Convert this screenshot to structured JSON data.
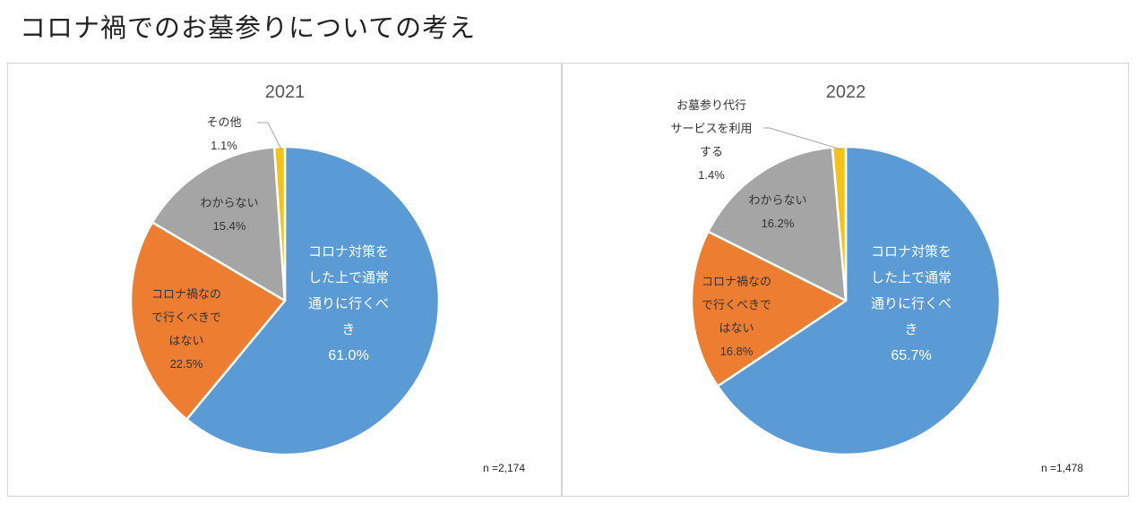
{
  "page": {
    "title": "コロナ禍でのお墓参りについての考え"
  },
  "colors": {
    "normal": "#5b9bd5",
    "not_go": "#ed7d31",
    "unknown": "#a5a5a5",
    "other": "#f5c218"
  },
  "chart_data": [
    {
      "type": "pie",
      "title": "2021",
      "n_label": "n =2,174",
      "slices": [
        {
          "key": "normal",
          "label_lines": [
            "コロナ対策を",
            "した上で通常",
            "通りに行くべ",
            "き"
          ],
          "value": 61.0,
          "value_label": "61.0%"
        },
        {
          "key": "not_go",
          "label_lines": [
            "コロナ禍なの",
            "で行くべきで",
            "はない"
          ],
          "value": 22.5,
          "value_label": "22.5%"
        },
        {
          "key": "unknown",
          "label_lines": [
            "わからない"
          ],
          "value": 15.4,
          "value_label": "15.4%"
        },
        {
          "key": "other",
          "label_lines": [
            "その他"
          ],
          "value": 1.1,
          "value_label": "1.1%"
        }
      ]
    },
    {
      "type": "pie",
      "title": "2022",
      "n_label": "n =1,478",
      "slices": [
        {
          "key": "normal",
          "label_lines": [
            "コロナ対策を",
            "した上で通常",
            "通りに行くべ",
            "き"
          ],
          "value": 65.7,
          "value_label": "65.7%"
        },
        {
          "key": "not_go",
          "label_lines": [
            "コロナ禍なの",
            "で行くべきで",
            "はない"
          ],
          "value": 16.8,
          "value_label": "16.8%"
        },
        {
          "key": "unknown",
          "label_lines": [
            "わからない"
          ],
          "value": 16.2,
          "value_label": "16.2%"
        },
        {
          "key": "other",
          "label_lines": [
            "お墓参り代行",
            "サービスを利用",
            "する"
          ],
          "value": 1.4,
          "value_label": "1.4%"
        }
      ]
    }
  ]
}
